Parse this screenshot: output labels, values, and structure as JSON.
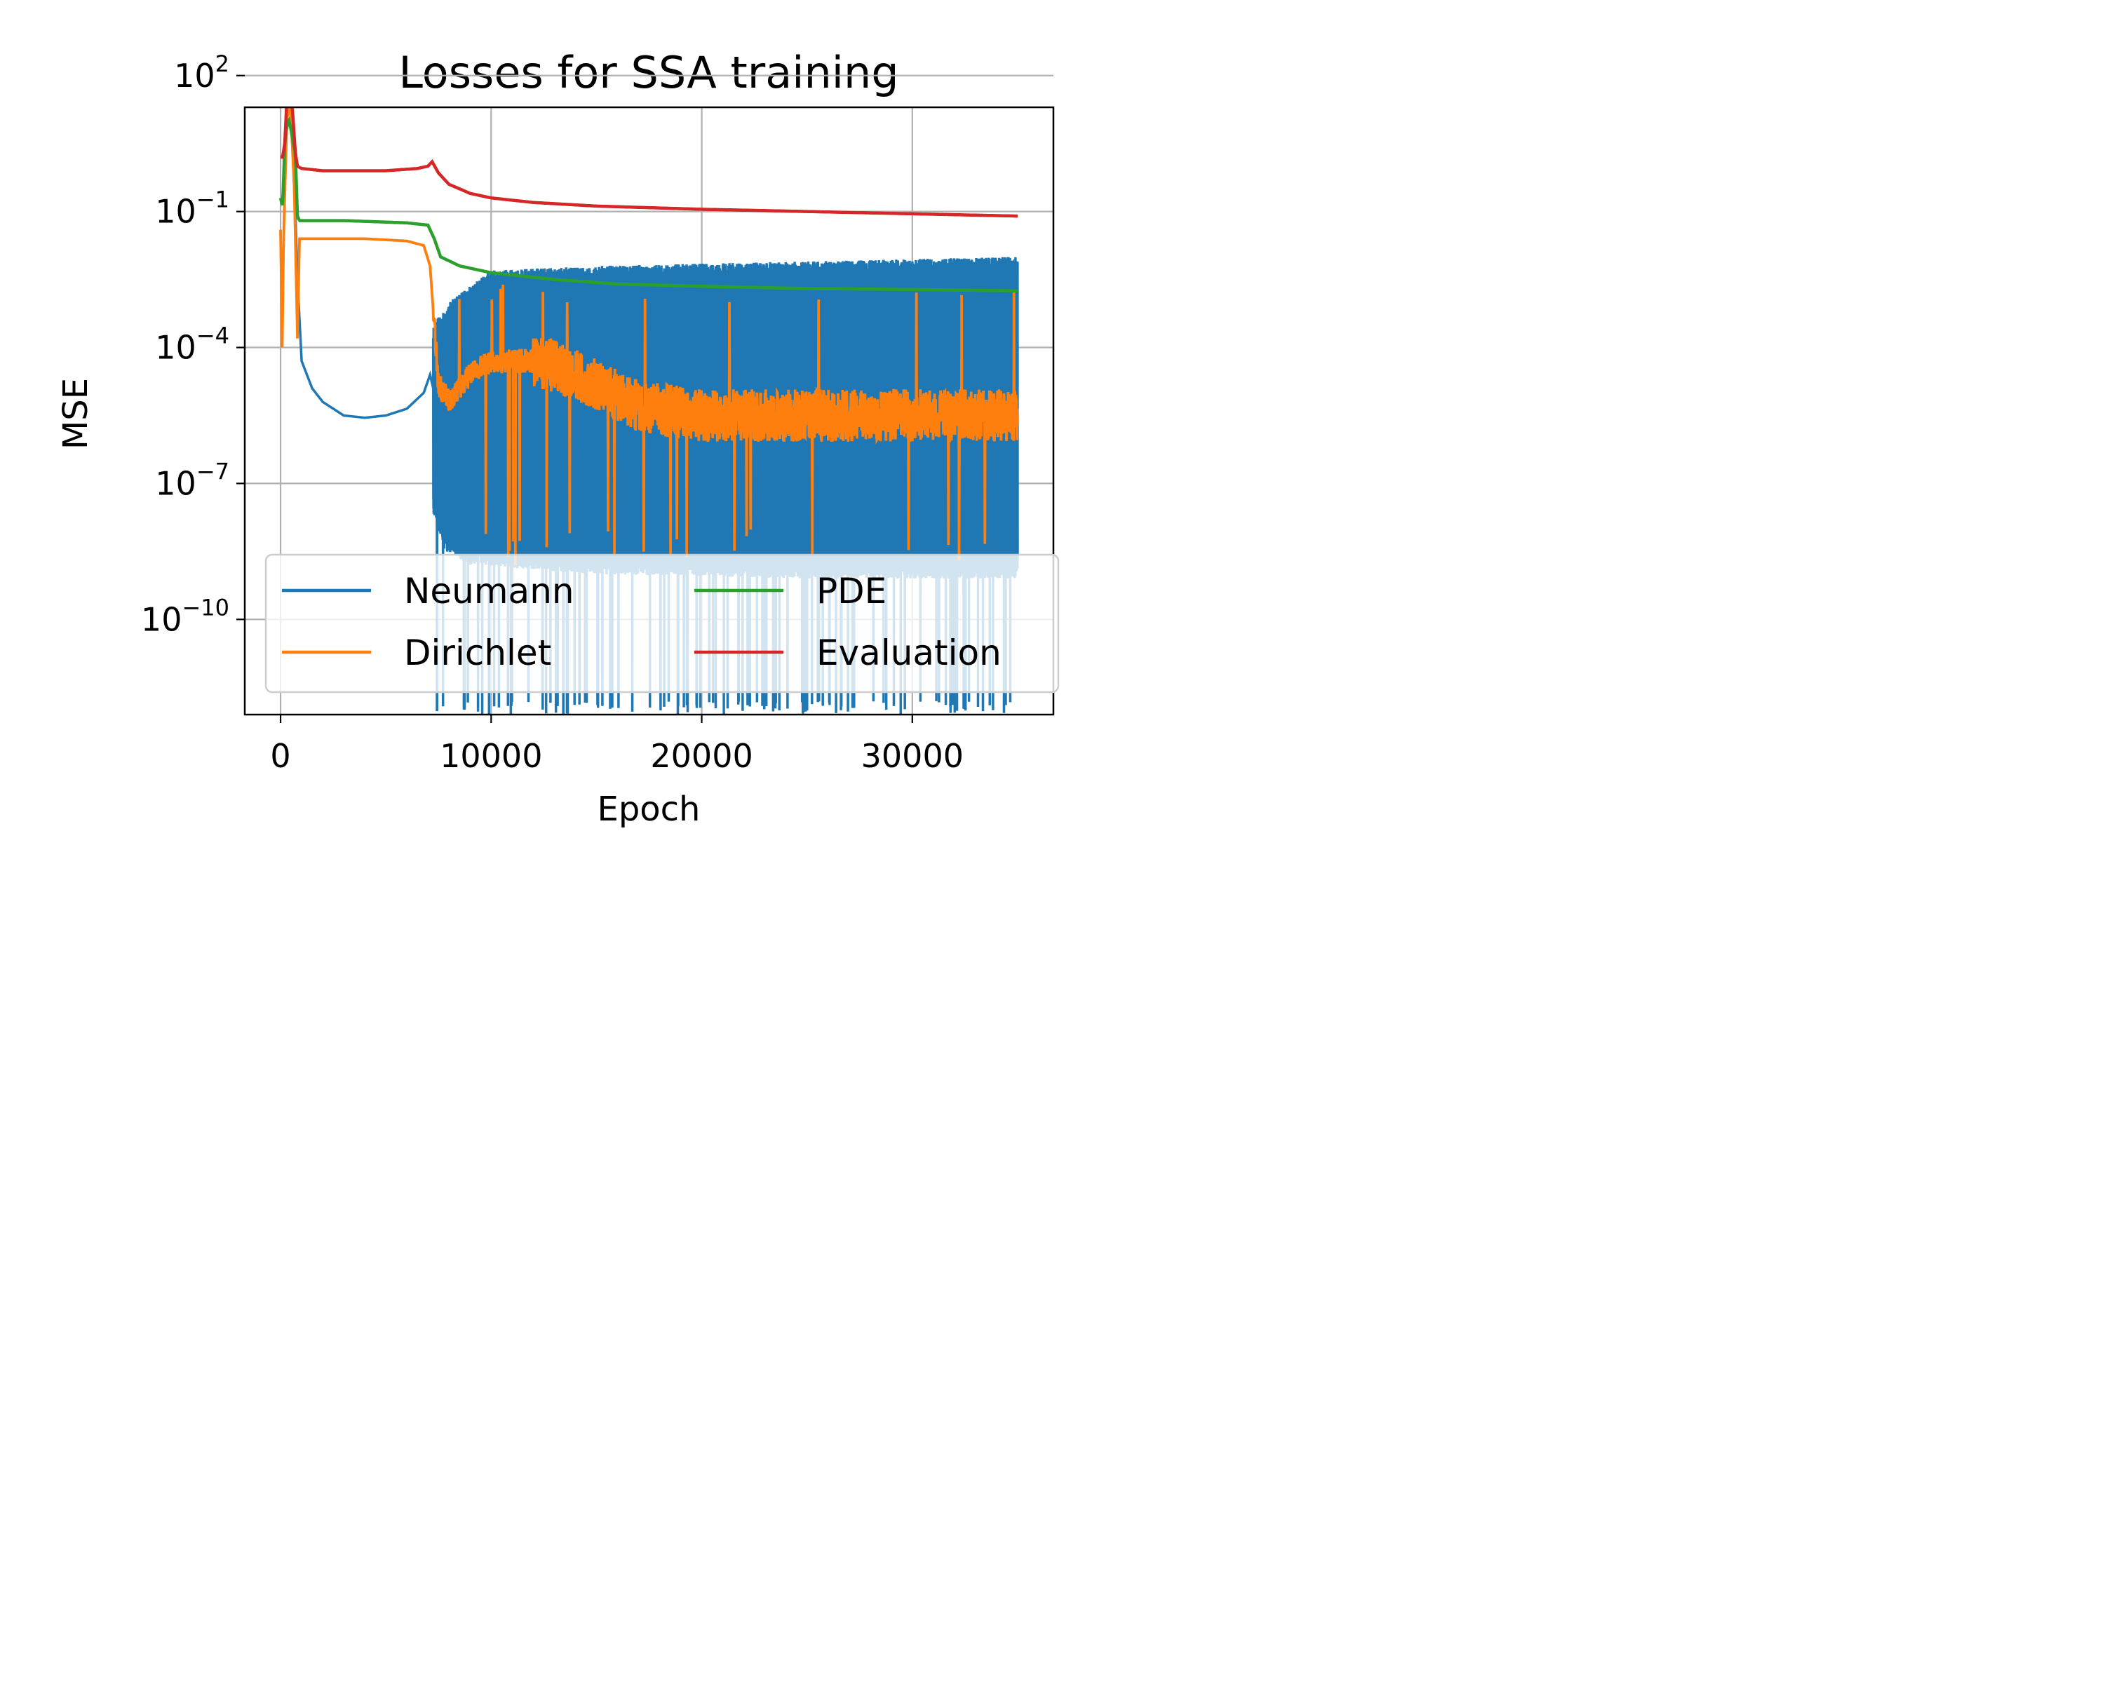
{
  "chart_data": {
    "type": "line",
    "title": "Losses for SSA training",
    "xlabel": "Epoch",
    "ylabel": "MSE",
    "yscale": "log",
    "xlim": [
      -1700,
      36700
    ],
    "ylim_log10": [
      -12.1,
      1.3
    ],
    "grid": true,
    "legend_position": "lower-right",
    "legend_columns": 2,
    "x_ticks": [
      {
        "value": 0,
        "label": "0"
      },
      {
        "value": 10000,
        "label": "10000"
      },
      {
        "value": 20000,
        "label": "20000"
      },
      {
        "value": 30000,
        "label": "30000"
      }
    ],
    "y_ticks": [
      {
        "exp": 2,
        "base": "10",
        "sup": "2"
      },
      {
        "exp": -1,
        "base": "10",
        "sup": "−1"
      },
      {
        "exp": -4,
        "base": "10",
        "sup": "−4"
      },
      {
        "exp": -7,
        "base": "10",
        "sup": "−7"
      },
      {
        "exp": -10,
        "base": "10",
        "sup": "−10"
      }
    ],
    "series": [
      {
        "name": "Neumann",
        "color": "#1f77b4",
        "x": [
          0,
          200,
          400,
          600,
          800,
          1000,
          1500,
          2000,
          3000,
          4000,
          5000,
          6000,
          6800,
          7100,
          7250
        ],
        "log10_y": [
          2.6,
          2.5,
          1.9,
          0.5,
          -2.5,
          -4.3,
          -4.9,
          -5.2,
          -5.5,
          -5.55,
          -5.5,
          -5.35,
          -5.0,
          -4.6,
          -4.9
        ],
        "noisy_band": {
          "x_start": 7250,
          "x_end": 35000,
          "upper_log10": [
            [
              7250,
              -3.5
            ],
            [
              8000,
              -3.0
            ],
            [
              10000,
              -2.3
            ],
            [
              15000,
              -2.2
            ],
            [
              25000,
              -2.1
            ],
            [
              35000,
              -2.0
            ]
          ],
          "lower_log10": [
            [
              7250,
              -7.2
            ],
            [
              7800,
              -8.0
            ],
            [
              9000,
              -8.3
            ],
            [
              15000,
              -8.5
            ],
            [
              25000,
              -8.6
            ],
            [
              35000,
              -8.6
            ]
          ],
          "spike_min_log10": -12.1
        }
      },
      {
        "name": "Dirichlet",
        "color": "#ff7f0e",
        "x": [
          0,
          80,
          150,
          300,
          400,
          500,
          650,
          800,
          900,
          1000,
          2000,
          4000,
          6000,
          6800,
          7100,
          7300,
          7500,
          8000,
          9000,
          10000,
          12000,
          13000,
          15000,
          17000,
          20000,
          25000,
          30000,
          35000
        ],
        "log10_y": [
          -1.4,
          -4.0,
          -1.5,
          1.0,
          1.4,
          1.0,
          -0.5,
          -3.8,
          -1.6,
          -1.6,
          -1.6,
          -1.6,
          -1.65,
          -1.75,
          -2.2,
          -3.5,
          -4.8,
          -5.2,
          -4.6,
          -4.3,
          -4.3,
          -4.4,
          -4.8,
          -5.3,
          -5.5,
          -5.5,
          -5.5,
          -5.5
        ],
        "noise_amplitude": 0.45
      },
      {
        "name": "PDE",
        "color": "#2ca02c",
        "x": [
          0,
          100,
          200,
          300,
          400,
          500,
          600,
          700,
          800,
          900,
          1000,
          3000,
          6000,
          7000,
          7300,
          7600,
          8500,
          10000,
          13000,
          16000,
          20000,
          25000,
          30000,
          35000
        ],
        "log10_y": [
          -0.7,
          -0.9,
          0.5,
          0.9,
          1.0,
          0.8,
          0.5,
          0.3,
          -1.1,
          -1.2,
          -1.2,
          -1.2,
          -1.25,
          -1.3,
          -1.6,
          -2.0,
          -2.2,
          -2.35,
          -2.5,
          -2.6,
          -2.65,
          -2.7,
          -2.72,
          -2.75
        ]
      },
      {
        "name": "Evaluation",
        "color": "#d62728",
        "x": [
          0,
          100,
          200,
          300,
          400,
          500,
          600,
          700,
          800,
          1000,
          2000,
          3000,
          5000,
          6500,
          7000,
          7200,
          7500,
          8000,
          9000,
          10000,
          12000,
          15000,
          20000,
          25000,
          30000,
          35000
        ],
        "log10_y": [
          0.2,
          0.2,
          0.5,
          1.5,
          1.8,
          1.6,
          1.0,
          0.3,
          0.0,
          -0.05,
          -0.1,
          -0.1,
          -0.1,
          -0.05,
          0.0,
          0.1,
          -0.15,
          -0.4,
          -0.6,
          -0.7,
          -0.8,
          -0.88,
          -0.95,
          -1.0,
          -1.05,
          -1.1
        ]
      }
    ]
  }
}
